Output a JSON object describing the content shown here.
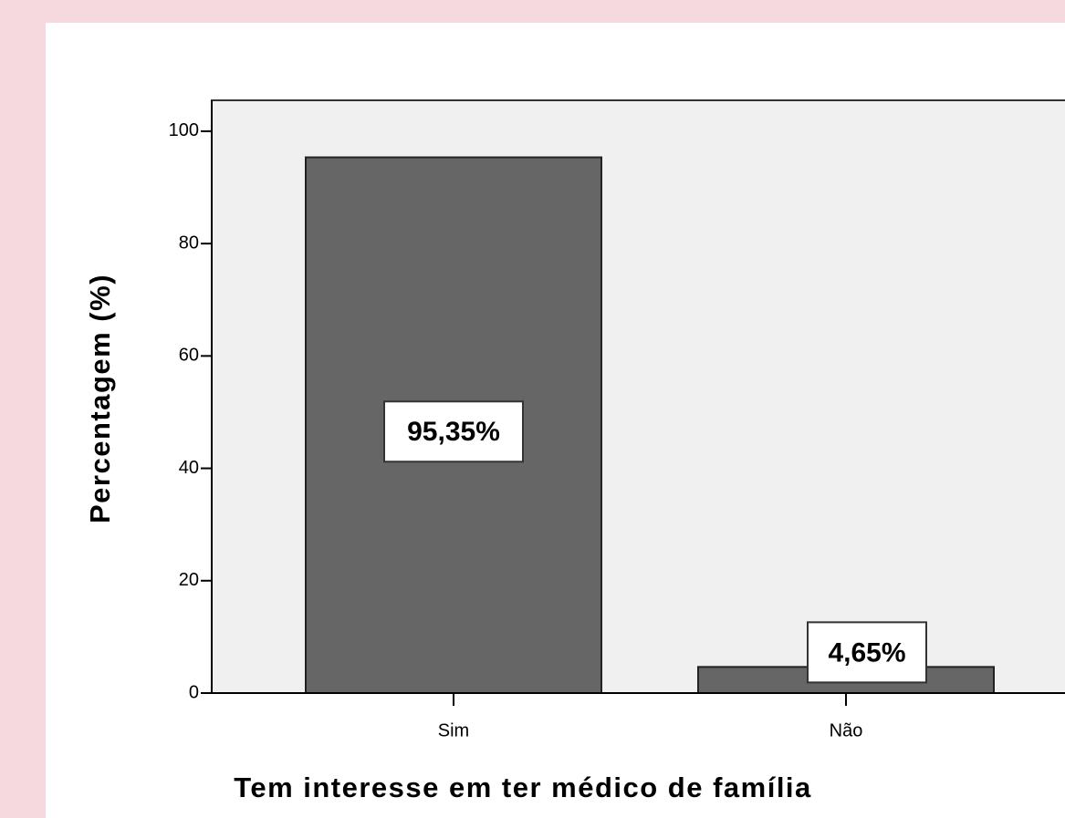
{
  "chart_data": {
    "type": "bar",
    "categories": [
      "Sim",
      "Não"
    ],
    "values": [
      95.35,
      4.65
    ],
    "value_labels": [
      "95,35%",
      "4,65%"
    ],
    "color": "#666666",
    "ylim": [
      0,
      105.5
    ],
    "yticks": [
      0,
      20,
      40,
      60,
      80,
      100
    ],
    "y_label": "Percentagem (%)",
    "x_label": "Tem interesse em ter médico de família"
  }
}
